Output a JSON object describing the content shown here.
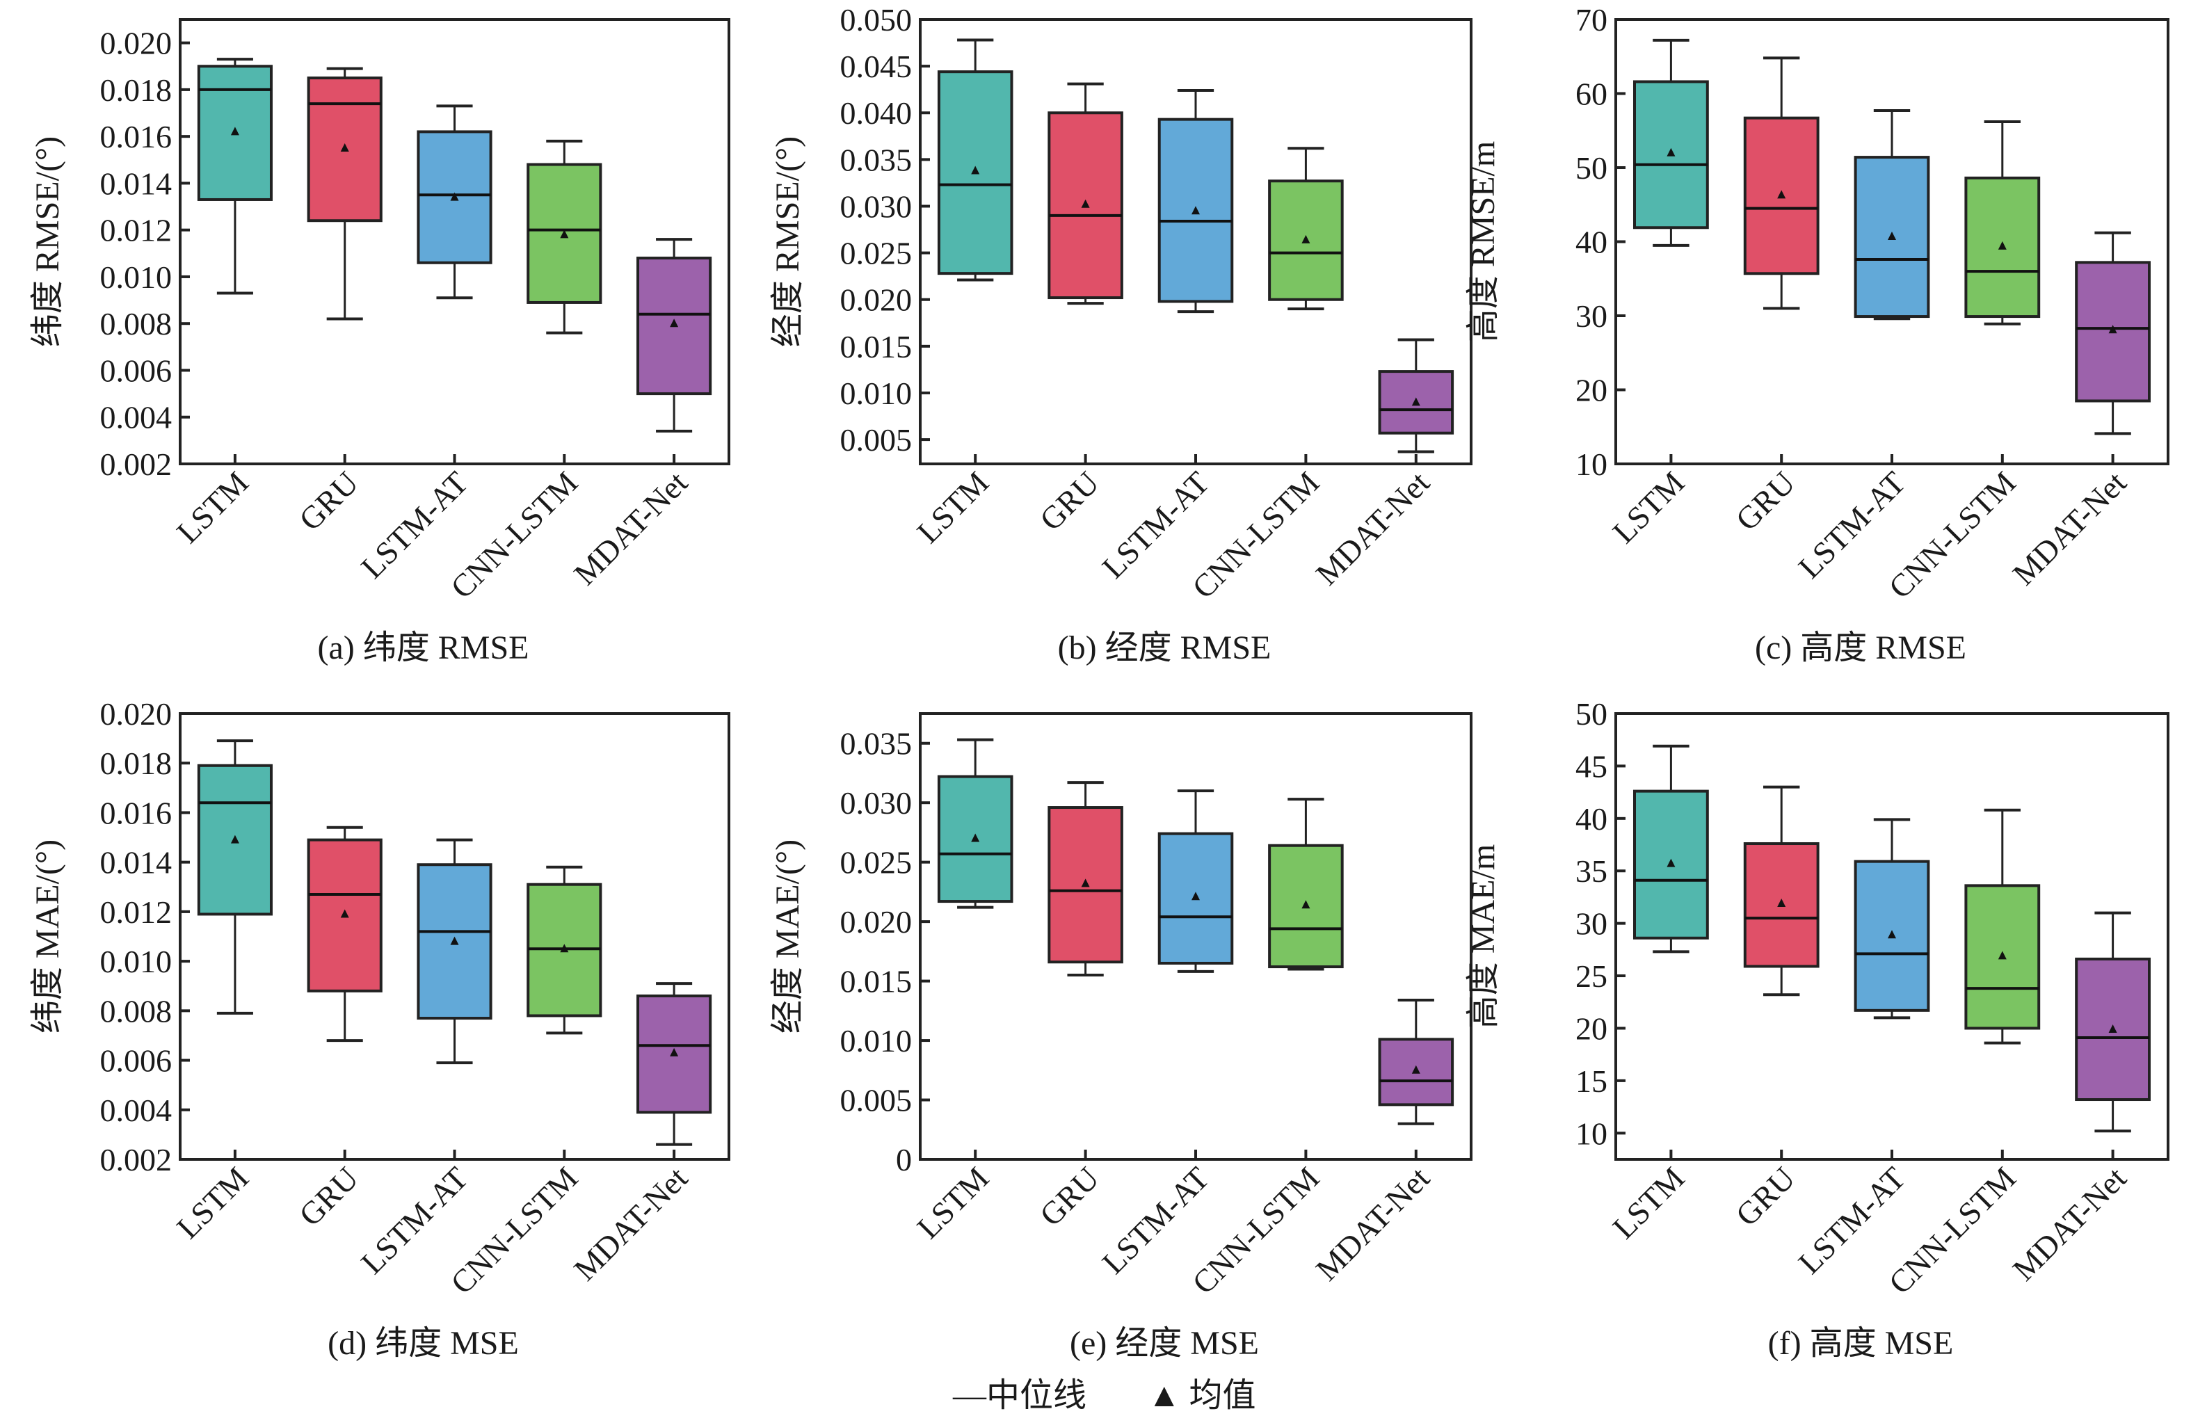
{
  "legend": {
    "median_label": "—中位线",
    "mean_label": "▲ 均值"
  },
  "colors": {
    "LSTM": "#52b7ad",
    "GRU": "#e05068",
    "LSTM-AT": "#62a9d8",
    "CNN-LSTM": "#7bc462",
    "MDAT-Net": "#9c62ab"
  },
  "chart_data": [
    {
      "type": "box",
      "caption": "(a) 纬度 RMSE",
      "ylabel": "纬度 RMSE/(°)",
      "ylim": [
        0.002,
        0.021
      ],
      "yticks": [
        "0.002",
        "0.004",
        "0.006",
        "0.008",
        "0.010",
        "0.012",
        "0.014",
        "0.016",
        "0.018",
        "0.020"
      ],
      "categories": [
        "LSTM",
        "GRU",
        "LSTM-AT",
        "CNN-LSTM",
        "MDAT-Net"
      ],
      "boxes": [
        {
          "low": 0.0093,
          "q1": 0.0133,
          "median": 0.018,
          "q3": 0.019,
          "high": 0.0193,
          "mean": 0.0162
        },
        {
          "low": 0.0082,
          "q1": 0.0124,
          "median": 0.0174,
          "q3": 0.0185,
          "high": 0.0189,
          "mean": 0.0155
        },
        {
          "low": 0.0091,
          "q1": 0.0106,
          "median": 0.0135,
          "q3": 0.0162,
          "high": 0.0173,
          "mean": 0.0134
        },
        {
          "low": 0.0076,
          "q1": 0.0089,
          "median": 0.012,
          "q3": 0.0148,
          "high": 0.0158,
          "mean": 0.0118
        },
        {
          "low": 0.0034,
          "q1": 0.005,
          "median": 0.0084,
          "q3": 0.0108,
          "high": 0.0116,
          "mean": 0.008
        }
      ]
    },
    {
      "type": "box",
      "caption": "(b) 经度 RMSE",
      "ylabel": "经度 RMSE/(°)",
      "ylim": [
        0.0024,
        0.05
      ],
      "yticks": [
        "0.005",
        "0.010",
        "0.015",
        "0.020",
        "0.025",
        "0.030",
        "0.035",
        "0.040",
        "0.045",
        "0.050"
      ],
      "categories": [
        "LSTM",
        "GRU",
        "LSTM-AT",
        "CNN-LSTM",
        "MDAT-Net"
      ],
      "boxes": [
        {
          "low": 0.0221,
          "q1": 0.0228,
          "median": 0.0323,
          "q3": 0.0444,
          "high": 0.0478,
          "mean": 0.0338
        },
        {
          "low": 0.0196,
          "q1": 0.0202,
          "median": 0.029,
          "q3": 0.04,
          "high": 0.0431,
          "mean": 0.0302
        },
        {
          "low": 0.0187,
          "q1": 0.0198,
          "median": 0.0284,
          "q3": 0.0393,
          "high": 0.0424,
          "mean": 0.0295
        },
        {
          "low": 0.019,
          "q1": 0.02,
          "median": 0.025,
          "q3": 0.0327,
          "high": 0.0362,
          "mean": 0.0264
        },
        {
          "low": 0.0037,
          "q1": 0.0057,
          "median": 0.0082,
          "q3": 0.0123,
          "high": 0.0157,
          "mean": 0.009
        }
      ]
    },
    {
      "type": "box",
      "caption": "(c) 高度 RMSE",
      "ylabel": "高度 RMSE/m",
      "ylim": [
        10,
        70
      ],
      "yticks": [
        "10",
        "20",
        "30",
        "40",
        "50",
        "60",
        "70"
      ],
      "categories": [
        "LSTM",
        "GRU",
        "LSTM-AT",
        "CNN-LSTM",
        "MDAT-Net"
      ],
      "boxes": [
        {
          "low": 39.5,
          "q1": 41.9,
          "median": 50.4,
          "q3": 61.6,
          "high": 67.2,
          "mean": 52.0
        },
        {
          "low": 31.0,
          "q1": 35.7,
          "median": 44.5,
          "q3": 56.7,
          "high": 64.8,
          "mean": 46.3
        },
        {
          "low": 29.6,
          "q1": 29.9,
          "median": 37.6,
          "q3": 51.4,
          "high": 57.7,
          "mean": 40.7
        },
        {
          "low": 28.9,
          "q1": 29.9,
          "median": 36.0,
          "q3": 48.6,
          "high": 56.2,
          "mean": 39.4
        },
        {
          "low": 14.1,
          "q1": 18.5,
          "median": 28.3,
          "q3": 37.2,
          "high": 41.2,
          "mean": 28.1
        }
      ]
    },
    {
      "type": "box",
      "caption": "(d) 纬度 MSE",
      "ylabel": "纬度 MAE/(°)",
      "ylim": [
        0.002,
        0.02
      ],
      "yticks": [
        "0.002",
        "0.004",
        "0.006",
        "0.008",
        "0.010",
        "0.012",
        "0.014",
        "0.016",
        "0.018",
        "0.020"
      ],
      "categories": [
        "LSTM",
        "GRU",
        "LSTM-AT",
        "CNN-LSTM",
        "MDAT-Net"
      ],
      "boxes": [
        {
          "low": 0.0079,
          "q1": 0.0119,
          "median": 0.0164,
          "q3": 0.0179,
          "high": 0.0189,
          "mean": 0.0149
        },
        {
          "low": 0.0068,
          "q1": 0.0088,
          "median": 0.0127,
          "q3": 0.0149,
          "high": 0.0154,
          "mean": 0.0119
        },
        {
          "low": 0.0059,
          "q1": 0.0077,
          "median": 0.0112,
          "q3": 0.0139,
          "high": 0.0149,
          "mean": 0.0108
        },
        {
          "low": 0.0071,
          "q1": 0.0078,
          "median": 0.0105,
          "q3": 0.0131,
          "high": 0.0138,
          "mean": 0.0105
        },
        {
          "low": 0.0026,
          "q1": 0.0039,
          "median": 0.0066,
          "q3": 0.0086,
          "high": 0.0091,
          "mean": 0.0063
        }
      ]
    },
    {
      "type": "box",
      "caption": "(e) 经度 MSE",
      "ylabel": "经度 MAE/(°)",
      "ylim": [
        0,
        0.0375
      ],
      "yticks": [
        "0",
        "0.005",
        "0.010",
        "0.015",
        "0.020",
        "0.025",
        "0.030",
        "0.035"
      ],
      "categories": [
        "LSTM",
        "GRU",
        "LSTM-AT",
        "CNN-LSTM",
        "MDAT-Net"
      ],
      "boxes": [
        {
          "low": 0.0212,
          "q1": 0.0217,
          "median": 0.0257,
          "q3": 0.0322,
          "high": 0.0353,
          "mean": 0.027
        },
        {
          "low": 0.0155,
          "q1": 0.0166,
          "median": 0.0226,
          "q3": 0.0296,
          "high": 0.0317,
          "mean": 0.0232
        },
        {
          "low": 0.0158,
          "q1": 0.0165,
          "median": 0.0204,
          "q3": 0.0274,
          "high": 0.031,
          "mean": 0.0221
        },
        {
          "low": 0.016,
          "q1": 0.0162,
          "median": 0.0194,
          "q3": 0.0264,
          "high": 0.0303,
          "mean": 0.0214
        },
        {
          "low": 0.003,
          "q1": 0.0046,
          "median": 0.0066,
          "q3": 0.0101,
          "high": 0.0134,
          "mean": 0.0075
        }
      ]
    },
    {
      "type": "box",
      "caption": "(f) 高度 MSE",
      "ylabel": "高度 MAE/m",
      "ylim": [
        7.5,
        50
      ],
      "yticks": [
        "10",
        "15",
        "20",
        "25",
        "30",
        "35",
        "40",
        "45",
        "50"
      ],
      "categories": [
        "LSTM",
        "GRU",
        "LSTM-AT",
        "CNN-LSTM",
        "MDAT-Net"
      ],
      "boxes": [
        {
          "low": 27.3,
          "q1": 28.6,
          "median": 34.1,
          "q3": 42.6,
          "high": 46.9,
          "mean": 35.7
        },
        {
          "low": 23.2,
          "q1": 25.9,
          "median": 30.5,
          "q3": 37.6,
          "high": 43.0,
          "mean": 31.9
        },
        {
          "low": 21.0,
          "q1": 21.7,
          "median": 27.1,
          "q3": 35.9,
          "high": 39.9,
          "mean": 28.9
        },
        {
          "low": 18.6,
          "q1": 20.0,
          "median": 23.8,
          "q3": 33.6,
          "high": 40.8,
          "mean": 26.9
        },
        {
          "low": 10.2,
          "q1": 13.2,
          "median": 19.1,
          "q3": 26.6,
          "high": 31.0,
          "mean": 19.9
        }
      ]
    }
  ]
}
